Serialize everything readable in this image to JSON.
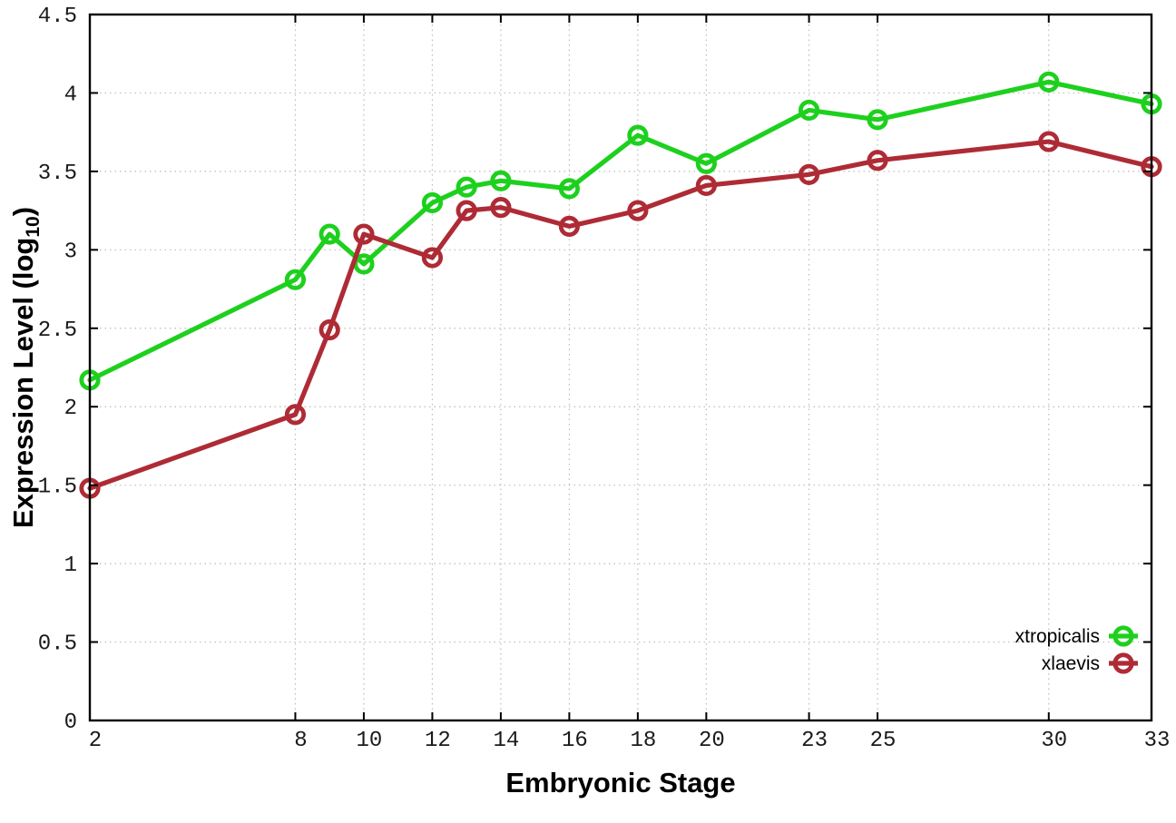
{
  "chart_data": {
    "type": "line",
    "title": "",
    "xlabel": "Embryonic Stage",
    "ylabel": "Expression Level (log10)",
    "ylabel_parts": {
      "main": "Expression Level (log",
      "sub": "10",
      "close": ")"
    },
    "xlim": [
      2,
      33
    ],
    "ylim": [
      0,
      4.5
    ],
    "grid": true,
    "grid_style": "dotted",
    "legend_position": "inside-bottom-right",
    "x": [
      2,
      8,
      9,
      10,
      12,
      13,
      14,
      16,
      18,
      20,
      23,
      25,
      30,
      33
    ],
    "xtick_values": [
      2,
      8,
      10,
      12,
      14,
      16,
      18,
      20,
      23,
      25,
      30,
      33
    ],
    "xtick_labels": [
      "2",
      "8",
      "10",
      "12",
      "14",
      "16",
      "18",
      "20",
      "23",
      "25",
      "30",
      "33"
    ],
    "ytick_values": [
      0,
      0.5,
      1,
      1.5,
      2,
      2.5,
      3,
      3.5,
      4,
      4.5
    ],
    "ytick_labels": [
      "0",
      "0.5",
      "1",
      "1.5",
      "2",
      "2.5",
      "3",
      "3.5",
      "4",
      "4.5"
    ],
    "series": [
      {
        "name": "xtropicalis",
        "color": "#1ed01e",
        "marker": "open-circle",
        "values": [
          2.17,
          2.81,
          3.1,
          2.91,
          3.3,
          3.4,
          3.44,
          3.39,
          3.73,
          3.55,
          3.89,
          3.83,
          4.07,
          3.93
        ]
      },
      {
        "name": "xlaevis",
        "color": "#ae2b35",
        "marker": "open-circle",
        "values": [
          1.48,
          1.95,
          2.49,
          3.1,
          2.95,
          3.25,
          3.27,
          3.15,
          3.25,
          3.41,
          3.48,
          3.57,
          3.69,
          3.53
        ]
      }
    ],
    "colors": {
      "grid": "#bcbcbc",
      "border": "#000000",
      "background": "#ffffff"
    }
  }
}
